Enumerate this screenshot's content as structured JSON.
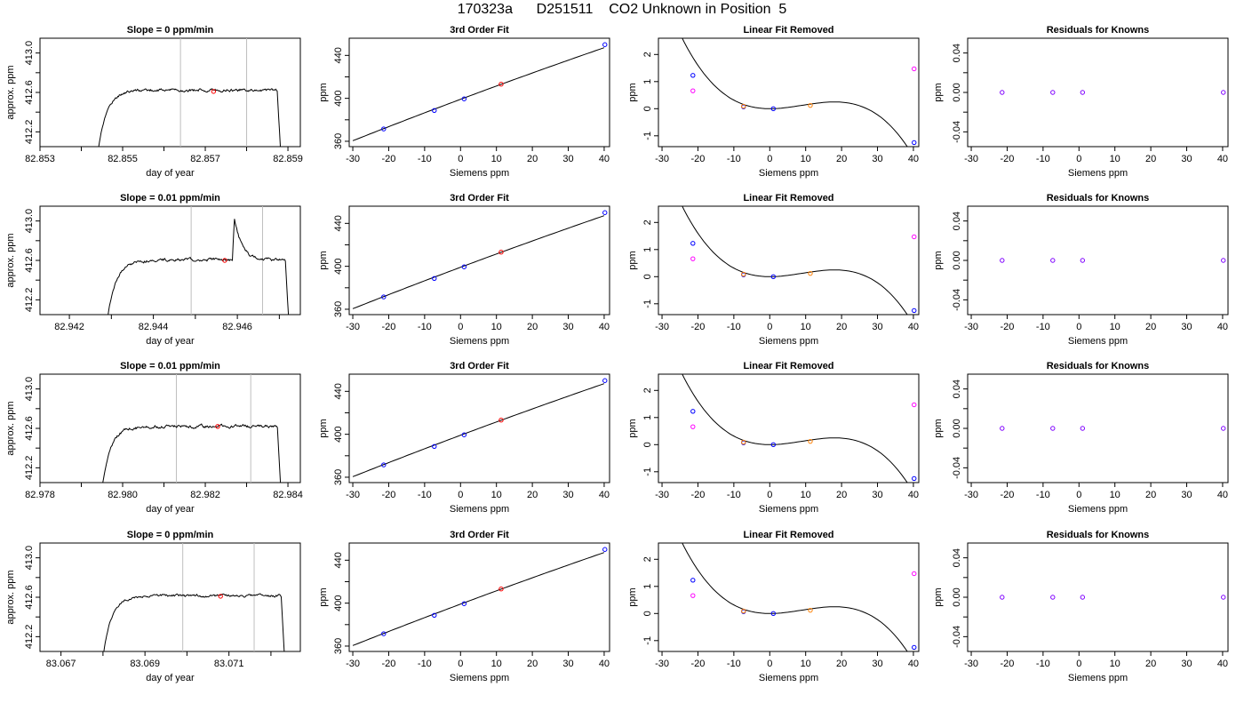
{
  "page_title": "170323a      D251511    CO2 Unknown in Position  5",
  "colors": {
    "trace": "#000000",
    "vline": "#bebebe",
    "flat_point": "#ff0000",
    "known": "#0000ff",
    "unknown": "#ff0000",
    "resid": "#7f00ff",
    "pink": "#ff00ff",
    "orange": "#ff7f00"
  },
  "chart_data": [
    {
      "row": 1,
      "type": "line",
      "title": "Slope =  0  ppm/min",
      "xlabel": "day of year",
      "ylabel": "approx. ppm",
      "xlim": [
        82.853,
        82.8593
      ],
      "ylim": [
        412.05,
        413.15
      ],
      "xticks": [
        82.853,
        82.854,
        82.855,
        82.856,
        82.857,
        82.858,
        82.859
      ],
      "xticklabels": [
        "82.853",
        "",
        "82.855",
        "",
        "82.857",
        "",
        "82.859"
      ],
      "yticks": [
        412.2,
        412.4,
        412.6,
        412.8,
        413.0
      ],
      "yticklabels": [
        "412.2",
        "",
        "412.6",
        "",
        "413.0"
      ],
      "vlines": [
        82.8564,
        82.858
      ],
      "start_x": 82.8543,
      "end_x": 82.8589,
      "plateau": 412.625,
      "noise": 0.015,
      "spike": null,
      "point": [
        82.8572,
        412.61
      ]
    },
    {
      "row": 2,
      "type": "line",
      "title": "Slope =  0.01  ppm/min",
      "xlabel": "day of year",
      "ylabel": "approx. ppm",
      "xlim": [
        82.9413,
        82.9475
      ],
      "ylim": [
        412.05,
        413.15
      ],
      "xticks": [
        82.942,
        82.943,
        82.944,
        82.945,
        82.946,
        82.947
      ],
      "xticklabels": [
        "82.942",
        "",
        "82.944",
        "",
        "82.946",
        ""
      ],
      "yticks": [
        412.2,
        412.4,
        412.6,
        412.8,
        413.0
      ],
      "yticklabels": [
        "412.2",
        "",
        "412.6",
        "",
        "413.0"
      ],
      "vlines": [
        82.9449,
        82.9466
      ],
      "start_x": 82.9428,
      "end_x": 82.9473,
      "plateau": 412.605,
      "noise": 0.015,
      "spike": [
        82.9459,
        413.03
      ],
      "point": [
        82.9457,
        412.6
      ]
    },
    {
      "row": 3,
      "type": "line",
      "title": "Slope =  0.01  ppm/min",
      "xlabel": "day of year",
      "ylabel": "approx. ppm",
      "xlim": [
        82.978,
        82.9843
      ],
      "ylim": [
        412.05,
        413.15
      ],
      "xticks": [
        82.978,
        82.979,
        82.98,
        82.981,
        82.982,
        82.983,
        82.984
      ],
      "xticklabels": [
        "82.978",
        "",
        "82.980",
        "",
        "82.982",
        "",
        "82.984"
      ],
      "yticks": [
        412.2,
        412.4,
        412.6,
        412.8,
        413.0
      ],
      "yticklabels": [
        "412.2",
        "",
        "412.6",
        "",
        "413.0"
      ],
      "vlines": [
        82.9813,
        82.9831
      ],
      "start_x": 82.9794,
      "end_x": 82.9839,
      "plateau": 412.62,
      "noise": 0.015,
      "spike": null,
      "point": [
        82.9823,
        412.62
      ]
    },
    {
      "row": 4,
      "type": "line",
      "title": "Slope =  0  ppm/min",
      "xlabel": "day of year",
      "ylabel": "approx. ppm",
      "xlim": [
        83.0665,
        83.0727
      ],
      "ylim": [
        412.05,
        413.15
      ],
      "xticks": [
        83.067,
        83.068,
        83.069,
        83.07,
        83.071,
        83.072
      ],
      "xticklabels": [
        "83.067",
        "",
        "83.069",
        "",
        "83.071",
        ""
      ],
      "yticks": [
        412.2,
        412.4,
        412.6,
        412.8,
        413.0
      ],
      "yticklabels": [
        "412.2",
        "",
        "412.6",
        "",
        "413.0"
      ],
      "vlines": [
        83.0699,
        83.0716
      ],
      "start_x": 83.0679,
      "end_x": 83.0724,
      "plateau": 412.615,
      "noise": 0.013,
      "spike": null,
      "point": [
        83.0708,
        412.61
      ]
    }
  ],
  "fit_panel": {
    "type": "scatter",
    "title": "3rd Order Fit",
    "xlabel": "Siemens ppm",
    "ylabel": "ppm",
    "xlim": [
      -31,
      41.5
    ],
    "ylim": [
      355,
      456
    ],
    "xticks": [
      -30,
      -20,
      -10,
      0,
      10,
      20,
      30,
      40
    ],
    "xticklabels": [
      "-30",
      "-20",
      "-10",
      "0",
      "10",
      "20",
      "30",
      "40"
    ],
    "yticks": [
      360,
      380,
      400,
      420,
      440
    ],
    "yticklabels": [
      "360",
      "",
      "400",
      "",
      "440"
    ],
    "knowns": [
      [
        -21.4,
        371.5
      ],
      [
        -7.3,
        388.7
      ],
      [
        1.0,
        399.5
      ],
      [
        40.2,
        450.0
      ]
    ],
    "unknowns": [
      [
        11.3,
        413.2
      ]
    ],
    "curve": {
      "x0": -30,
      "x1": 40,
      "slope": 1.25,
      "intercept": 399.1,
      "curvature": -0.0012
    }
  },
  "linear_removed_panel": {
    "type": "scatter",
    "title": "Linear Fit Removed",
    "xlabel": "Siemens ppm",
    "ylabel": "ppm",
    "xlim": [
      -31,
      41.5
    ],
    "ylim": [
      -1.4,
      2.6
    ],
    "xticks": [
      -30,
      -20,
      -10,
      0,
      10,
      20,
      30,
      40
    ],
    "xticklabels": [
      "-30",
      "-20",
      "-10",
      "0",
      "10",
      "20",
      "30",
      "40"
    ],
    "yticks": [
      -1,
      0,
      1,
      2
    ],
    "yticklabels": [
      "-1",
      "0",
      "1",
      "2"
    ],
    "curve_coeffs": [
      0,
      0,
      0.0023,
      -8.5e-05
    ],
    "curve_x": [
      -30,
      40
    ],
    "blue_points": [
      [
        -21.4,
        1.23
      ],
      [
        -7.3,
        0.07
      ],
      [
        1.0,
        0.0
      ],
      [
        40.2,
        -1.25
      ]
    ],
    "orange_points": [
      [
        -7.3,
        0.09
      ],
      [
        11.3,
        0.12
      ]
    ],
    "pink_points": [
      [
        -21.4,
        0.66
      ],
      [
        40.2,
        1.47
      ]
    ]
  },
  "residual_panel": {
    "type": "scatter",
    "title": "Residuals for Knowns",
    "xlabel": "Siemens ppm",
    "ylabel": "ppm",
    "xlim": [
      -31,
      41.5
    ],
    "ylim": [
      -0.055,
      0.055
    ],
    "xticks": [
      -30,
      -20,
      -10,
      0,
      10,
      20,
      30,
      40
    ],
    "xticklabels": [
      "-30",
      "-20",
      "-10",
      "0",
      "10",
      "20",
      "30",
      "40"
    ],
    "yticks": [
      -0.04,
      0,
      0.04
    ],
    "yticklabels": [
      "-0.04",
      "0.00",
      "0.04"
    ],
    "yticks_minor": [
      -0.02,
      0.02
    ],
    "points": [
      [
        -21.4,
        0
      ],
      [
        -7.3,
        0
      ],
      [
        1.0,
        0
      ],
      [
        40.2,
        0
      ]
    ]
  }
}
